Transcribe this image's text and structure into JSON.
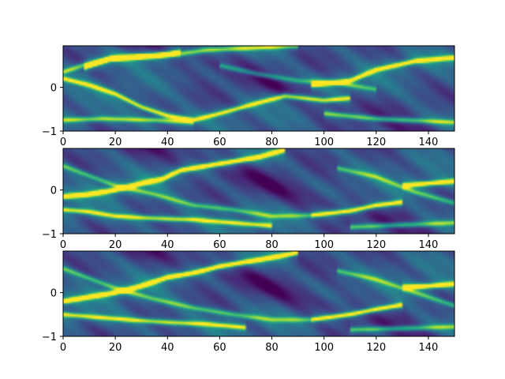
{
  "chart_data": [
    {
      "type": "heatmap",
      "colormap": "viridis",
      "xlim": [
        0,
        150
      ],
      "ylim": [
        -1,
        0.95
      ],
      "xticks": [
        "0",
        "20",
        "40",
        "60",
        "80",
        "100",
        "120",
        "140"
      ],
      "yticks": [
        "−1",
        "0"
      ],
      "bright_tracks": [
        {
          "points": [
            [
              0,
              0.35
            ],
            [
              10,
              0.55
            ],
            [
              20,
              0.68
            ],
            [
              40,
              0.73
            ],
            [
              55,
              0.85
            ],
            [
              90,
              0.95
            ]
          ],
          "intensity": 0.55
        },
        {
          "points": [
            [
              8,
              0.45
            ],
            [
              18,
              0.65
            ],
            [
              35,
              0.72
            ],
            [
              45,
              0.8
            ]
          ],
          "intensity": 0.95
        },
        {
          "points": [
            [
              0,
              0.2
            ],
            [
              10,
              0.05
            ],
            [
              20,
              -0.15
            ],
            [
              30,
              -0.45
            ],
            [
              40,
              -0.65
            ],
            [
              50,
              -0.75
            ],
            [
              60,
              -0.6
            ],
            [
              75,
              -0.35
            ],
            [
              85,
              -0.2
            ],
            [
              100,
              -0.3
            ],
            [
              110,
              -0.25
            ]
          ],
          "intensity": 0.7
        },
        {
          "points": [
            [
              0,
              -0.75
            ],
            [
              15,
              -0.72
            ],
            [
              35,
              -0.75
            ],
            [
              50,
              -0.8
            ]
          ],
          "intensity": 0.55
        },
        {
          "points": [
            [
              95,
              0.05
            ],
            [
              110,
              0.15
            ],
            [
              120,
              0.4
            ],
            [
              135,
              0.6
            ],
            [
              150,
              0.68
            ]
          ],
          "intensity": 0.8
        },
        {
          "points": [
            [
              100,
              -0.6
            ],
            [
              120,
              -0.72
            ],
            [
              150,
              -0.8
            ]
          ],
          "intensity": 0.55
        },
        {
          "points": [
            [
              60,
              0.5
            ],
            [
              75,
              0.3
            ],
            [
              90,
              0.15
            ],
            [
              105,
              0.1
            ],
            [
              120,
              -0.05
            ]
          ],
          "intensity": 0.4
        }
      ]
    },
    {
      "type": "heatmap",
      "colormap": "viridis",
      "xlim": [
        0,
        150
      ],
      "ylim": [
        -1,
        0.95
      ],
      "xticks": [
        "0",
        "20",
        "40",
        "60",
        "80",
        "100",
        "120",
        "140"
      ],
      "yticks": [
        "−1",
        "0"
      ],
      "bright_tracks": [
        {
          "points": [
            [
              0,
              -0.15
            ],
            [
              10,
              -0.1
            ],
            [
              20,
              0.0
            ],
            [
              30,
              0.15
            ],
            [
              38,
              0.25
            ],
            [
              45,
              0.45
            ],
            [
              55,
              0.55
            ],
            [
              65,
              0.65
            ],
            [
              75,
              0.75
            ],
            [
              85,
              0.92
            ]
          ],
          "intensity": 0.95
        },
        {
          "points": [
            [
              0,
              -0.45
            ],
            [
              10,
              -0.5
            ],
            [
              20,
              -0.6
            ],
            [
              35,
              -0.65
            ],
            [
              50,
              -0.68
            ],
            [
              65,
              -0.75
            ],
            [
              80,
              -0.82
            ]
          ],
          "intensity": 0.65
        },
        {
          "points": [
            [
              0,
              0.55
            ],
            [
              20,
              0.1
            ],
            [
              35,
              -0.1
            ],
            [
              50,
              -0.35
            ],
            [
              65,
              -0.45
            ],
            [
              80,
              -0.6
            ],
            [
              95,
              -0.58
            ]
          ],
          "intensity": 0.45
        },
        {
          "points": [
            [
              95,
              -0.58
            ],
            [
              110,
              -0.48
            ],
            [
              120,
              -0.35
            ],
            [
              130,
              -0.28
            ]
          ],
          "intensity": 0.8
        },
        {
          "points": [
            [
              130,
              0.1
            ],
            [
              140,
              0.15
            ],
            [
              150,
              0.2
            ]
          ],
          "intensity": 0.85
        },
        {
          "points": [
            [
              105,
              0.5
            ],
            [
              120,
              0.3
            ],
            [
              135,
              -0.05
            ],
            [
              150,
              -0.3
            ]
          ],
          "intensity": 0.45
        },
        {
          "points": [
            [
              110,
              -0.85
            ],
            [
              130,
              -0.8
            ],
            [
              150,
              -0.75
            ]
          ],
          "intensity": 0.5
        }
      ]
    },
    {
      "type": "heatmap",
      "colormap": "viridis",
      "xlim": [
        0,
        150
      ],
      "ylim": [
        -1,
        0.95
      ],
      "xticks": [
        "0",
        "20",
        "40",
        "60",
        "80",
        "100",
        "120",
        "140"
      ],
      "yticks": [
        "−1",
        "0"
      ],
      "bright_tracks": [
        {
          "points": [
            [
              0,
              -0.2
            ],
            [
              10,
              -0.1
            ],
            [
              20,
              0.0
            ],
            [
              30,
              0.15
            ],
            [
              40,
              0.35
            ],
            [
              50,
              0.45
            ],
            [
              60,
              0.6
            ],
            [
              70,
              0.7
            ],
            [
              80,
              0.8
            ],
            [
              90,
              0.92
            ]
          ],
          "intensity": 0.95
        },
        {
          "points": [
            [
              0,
              -0.5
            ],
            [
              10,
              -0.55
            ],
            [
              25,
              -0.62
            ],
            [
              40,
              -0.68
            ],
            [
              55,
              -0.72
            ],
            [
              70,
              -0.8
            ]
          ],
          "intensity": 0.65
        },
        {
          "points": [
            [
              0,
              0.55
            ],
            [
              20,
              0.1
            ],
            [
              35,
              -0.15
            ],
            [
              50,
              -0.35
            ],
            [
              65,
              -0.5
            ],
            [
              80,
              -0.62
            ],
            [
              95,
              -0.62
            ]
          ],
          "intensity": 0.45
        },
        {
          "points": [
            [
              95,
              -0.62
            ],
            [
              110,
              -0.5
            ],
            [
              120,
              -0.38
            ],
            [
              130,
              -0.28
            ]
          ],
          "intensity": 0.8
        },
        {
          "points": [
            [
              130,
              0.12
            ],
            [
              140,
              0.15
            ],
            [
              150,
              0.2
            ]
          ],
          "intensity": 0.9
        },
        {
          "points": [
            [
              105,
              0.5
            ],
            [
              120,
              0.3
            ],
            [
              135,
              0.0
            ],
            [
              150,
              -0.3
            ]
          ],
          "intensity": 0.45
        },
        {
          "points": [
            [
              110,
              -0.85
            ],
            [
              130,
              -0.82
            ],
            [
              150,
              -0.78
            ]
          ],
          "intensity": 0.5
        }
      ]
    }
  ]
}
